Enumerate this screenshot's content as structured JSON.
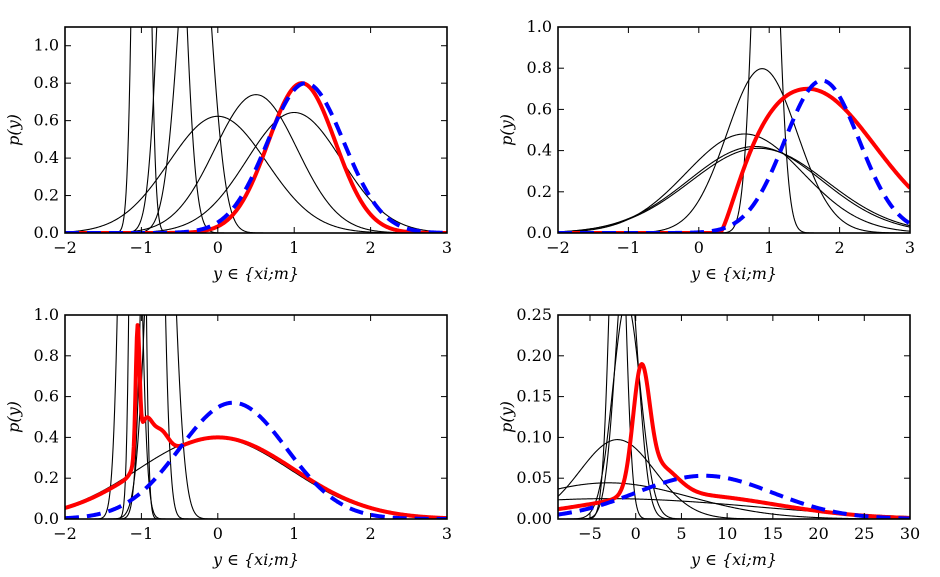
{
  "figure": {
    "colors": {
      "mixture": "#ff0000",
      "gaussian_fit": "#0000ff",
      "components": "#000000"
    }
  },
  "chart_data": [
    {
      "panel": "top-left",
      "type": "line",
      "xlabel": "y ∈ {xi;m}",
      "ylabel": "p(y)",
      "xlim": [
        -2,
        3
      ],
      "ylim": [
        0,
        1.1
      ],
      "xticks": [
        -2,
        -1,
        0,
        1,
        2,
        3
      ],
      "yticks": [
        0.0,
        0.2,
        0.4,
        0.6,
        0.8,
        1.0
      ],
      "xtick_labels": [
        "−2",
        "−1",
        "0",
        "1",
        "2",
        "3"
      ],
      "ytick_labels": [
        "0.0",
        "0.2",
        "0.4",
        "0.6",
        "0.8",
        "1.0"
      ],
      "components": [
        {
          "mu": -1.0,
          "sigma": 0.08
        },
        {
          "mu": -0.6,
          "sigma": 0.15
        },
        {
          "mu": -0.3,
          "sigma": 0.2
        },
        {
          "mu": 0.0,
          "sigma": 0.64
        },
        {
          "mu": 0.5,
          "sigma": 0.54
        },
        {
          "mu": 1.0,
          "sigma": 0.62
        }
      ],
      "mixture": {
        "name": "mixture",
        "type": "gaussian-sum",
        "terms": [
          {
            "w": 0.8,
            "mu": 1.1,
            "sigma": 0.44
          }
        ]
      },
      "fit": {
        "name": "gaussian fit",
        "mu": 1.15,
        "sigma": 0.5,
        "peak": 0.8
      }
    },
    {
      "panel": "top-right",
      "type": "line",
      "xlabel": "y ∈ {xi;m}",
      "ylabel": "p(y)",
      "xlim": [
        -2,
        3
      ],
      "ylim": [
        0,
        1.0
      ],
      "xticks": [
        -2,
        -1,
        0,
        1,
        2,
        3
      ],
      "yticks": [
        0.0,
        0.2,
        0.4,
        0.6,
        0.8,
        1.0
      ],
      "xtick_labels": [
        "−2",
        "−1",
        "0",
        "1",
        "2",
        "3"
      ],
      "ytick_labels": [
        "0.0",
        "0.2",
        "0.4",
        "0.6",
        "0.8",
        "1.0"
      ],
      "components": [
        {
          "mu": 0.9,
          "sigma": 0.5
        },
        {
          "mu": 0.95,
          "sigma": 0.15
        },
        {
          "mu": 0.65,
          "sigma": 0.83
        },
        {
          "mu": 0.8,
          "sigma": 0.95
        },
        {
          "mu": 0.85,
          "sigma": 0.97
        }
      ],
      "mixture": {
        "name": "mixture",
        "type": "skewed",
        "peak_x": 1.55,
        "peak": 0.7,
        "start": 0.3,
        "tail_sigma": 0.95
      },
      "fit": {
        "name": "gaussian fit",
        "mu": 1.75,
        "sigma": 0.53,
        "peak": 0.74
      }
    },
    {
      "panel": "bottom-left",
      "type": "line",
      "xlabel": "y ∈ {xi;m}",
      "ylabel": "p(y)",
      "xlim": [
        -2,
        3
      ],
      "ylim": [
        0,
        1.0
      ],
      "xticks": [
        -2,
        -1,
        0,
        1,
        2,
        3
      ],
      "yticks": [
        0.0,
        0.2,
        0.4,
        0.6,
        0.8,
        1.0
      ],
      "xtick_labels": [
        "−2",
        "−1",
        "0",
        "1",
        "2",
        "3"
      ],
      "ytick_labels": [
        "0.0",
        "0.2",
        "0.4",
        "0.6",
        "0.8",
        "1.0"
      ],
      "components": [
        {
          "mu": -1.15,
          "sigma": 0.1
        },
        {
          "mu": -1.05,
          "sigma": 0.06
        },
        {
          "mu": -0.85,
          "sigma": 0.1
        },
        {
          "mu": -0.75,
          "sigma": 0.15
        },
        {
          "mu": -0.05,
          "sigma": 1.0
        }
      ],
      "mixture": {
        "name": "mixture",
        "type": "gaussian-sum",
        "terms": [
          {
            "w": 0.6,
            "mu": -1.05,
            "sigma": 0.025
          },
          {
            "w": 0.22,
            "mu": -0.95,
            "sigma": 0.09
          },
          {
            "w": 0.12,
            "mu": -0.75,
            "sigma": 0.1
          },
          {
            "w": 0.4,
            "mu": 0.0,
            "sigma": 1.0
          }
        ]
      },
      "fit": {
        "name": "gaussian fit",
        "mu": 0.2,
        "sigma": 0.7,
        "peak": 0.57
      }
    },
    {
      "panel": "bottom-right",
      "type": "line",
      "xlabel": "y ∈ {xi;m}",
      "ylabel": "p(y)",
      "xlim": [
        -8.5,
        30
      ],
      "ylim": [
        0,
        0.25
      ],
      "xticks": [
        -5,
        0,
        5,
        10,
        15,
        20,
        25,
        30
      ],
      "yticks": [
        0.0,
        0.05,
        0.1,
        0.15,
        0.2,
        0.25
      ],
      "xtick_labels": [
        "−5",
        "0",
        "5",
        "10",
        "15",
        "20",
        "25",
        "30"
      ],
      "ytick_labels": [
        "0.00",
        "0.05",
        "0.10",
        "0.15",
        "0.20",
        "0.25"
      ],
      "components": [
        {
          "mu": -2.0,
          "sigma": 0.8
        },
        {
          "mu": -1.0,
          "sigma": 1.2
        },
        {
          "mu": -1.0,
          "sigma": 1.5
        },
        {
          "mu": -2.0,
          "sigma": 4.1
        },
        {
          "mu": -3.0,
          "sigma": 9.0
        },
        {
          "mu": -3.0,
          "sigma": 16.0
        }
      ],
      "mixture": {
        "name": "mixture",
        "type": "gaussian-sum",
        "terms": [
          {
            "w": 0.14,
            "mu": 0.6,
            "sigma": 0.9
          },
          {
            "w": 0.035,
            "mu": 2.5,
            "sigma": 2.0
          },
          {
            "w": 0.03,
            "mu": 5.0,
            "sigma": 10.0
          }
        ]
      },
      "fit": {
        "name": "gaussian fit",
        "mu": 7.5,
        "sigma": 7.5,
        "peak": 0.053
      }
    }
  ]
}
